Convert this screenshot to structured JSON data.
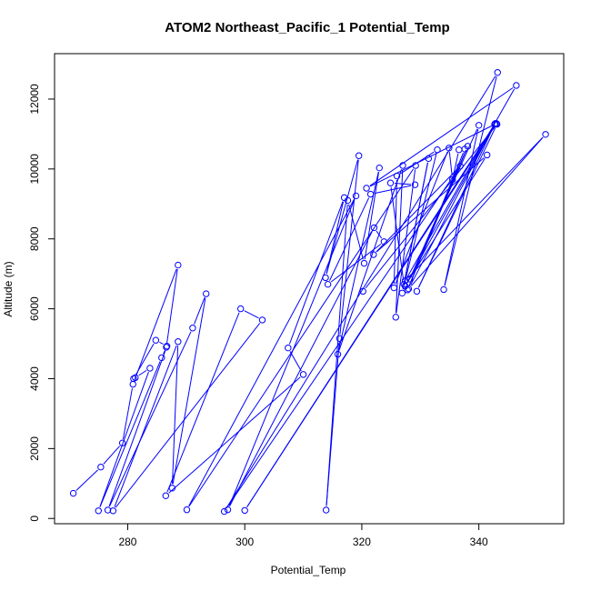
{
  "chart_data": {
    "type": "line",
    "title": "ATOM2 Northeast_Pacific_1 Potential_Temp",
    "xlabel": "Potential_Temp",
    "ylabel": "Altitude (m)",
    "xlim": [
      267.5,
      354.5
    ],
    "ylim": [
      -150,
      13300
    ],
    "xticks": [
      280,
      300,
      320,
      340
    ],
    "yticks": [
      0,
      2000,
      4000,
      6000,
      8000,
      10000,
      12000
    ],
    "grid": false,
    "line_color": "#0000ff",
    "marker": "open-circle",
    "x": [
      270.7,
      275.4,
      279.1,
      280.9,
      288.6,
      286.6,
      285.8,
      275.0,
      283.8,
      281.3,
      281.0,
      284.8,
      286.7,
      276.6,
      291.1,
      293.4,
      287.6,
      288.6,
      277.5,
      303.0,
      299.3,
      286.5,
      310.0,
      307.4,
      317.0,
      313.8,
      319.5,
      316.2,
      313.9,
      317.6,
      320.4,
      323.0,
      315.9,
      327.0,
      325.8,
      329.2,
      290.1,
      319.0,
      297.1,
      322.1,
      323.8,
      314.2,
      321.5,
      329.1,
      324.9,
      327.2,
      331.4,
      326.9,
      332.9,
      326.0,
      325.5,
      334.9,
      335.5,
      336.6,
      337.6,
      327.8,
      338.1,
      328.2,
      340.0,
      334.0,
      343.2,
      296.5,
      336.8,
      322.0,
      341.4,
      327.4,
      342.8,
      300.0,
      343.0,
      320.8,
      346.4,
      327.4,
      351.4,
      328.0,
      342.7,
      329.4,
      343.1,
      320.2
    ],
    "y": [
      720,
      1470,
      2160,
      3840,
      7250,
      4900,
      4600,
      220,
      4300,
      4030,
      4000,
      5100,
      4930,
      240,
      5450,
      6430,
      870,
      5060,
      220,
      5680,
      6000,
      650,
      4120,
      4880,
      9180,
      6890,
      10380,
      5150,
      240,
      9100,
      7300,
      10030,
      4700,
      10100,
      5760,
      10100,
      250,
      9230,
      250,
      8320,
      7920,
      6700,
      9280,
      9550,
      9600,
      6700,
      10300,
      6450,
      10550,
      9800,
      6600,
      10600,
      9700,
      10550,
      10570,
      6540,
      10650,
      6850,
      11250,
      6550,
      12760,
      200,
      10080,
      7550,
      10400,
      6650,
      11300,
      230,
      11300,
      9450,
      12390,
      6800,
      10990,
      6570,
      11280,
      6500,
      11280,
      6500
    ]
  }
}
